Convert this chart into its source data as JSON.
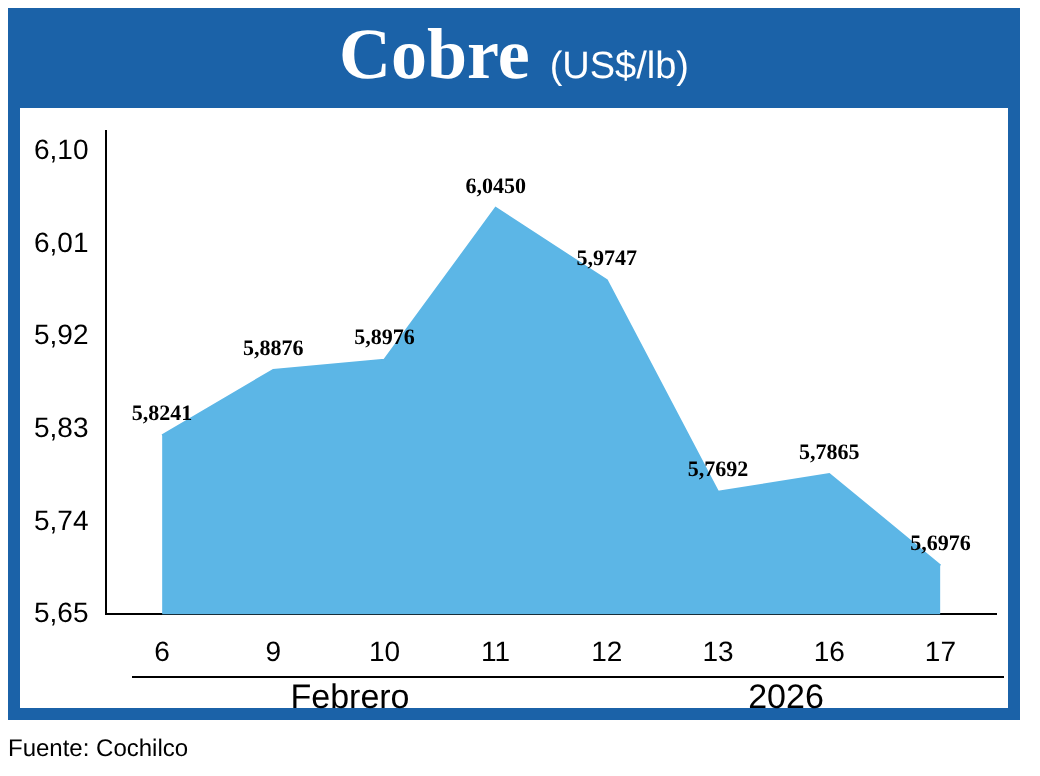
{
  "chart_data": {
    "type": "area",
    "title": "Cobre",
    "subtitle": "(US$/lb)",
    "categories": [
      "6",
      "9",
      "10",
      "11",
      "12",
      "13",
      "16",
      "17"
    ],
    "values": [
      5.8241,
      5.8876,
      5.8976,
      6.045,
      5.9747,
      5.7692,
      5.7865,
      5.6976
    ],
    "value_labels": [
      "5,8241",
      "5,8876",
      "5,8976",
      "6,0450",
      "5,9747",
      "5,7692",
      "5,7865",
      "5,6976"
    ],
    "color": "#5cb6e6",
    "ylim": [
      5.65,
      6.12
    ],
    "yticks": [
      {
        "value": 5.65,
        "label": "5,65"
      },
      {
        "value": 5.74,
        "label": "5,74"
      },
      {
        "value": 5.83,
        "label": "5,83"
      },
      {
        "value": 5.92,
        "label": "5,92"
      },
      {
        "value": 6.01,
        "label": "6,01"
      },
      {
        "value": 6.1,
        "label": "6,10"
      }
    ],
    "grid": false,
    "legend": false,
    "marker": "none",
    "annotations": [
      "Febrero",
      "2026",
      "Fuente: Cochilco"
    ]
  }
}
